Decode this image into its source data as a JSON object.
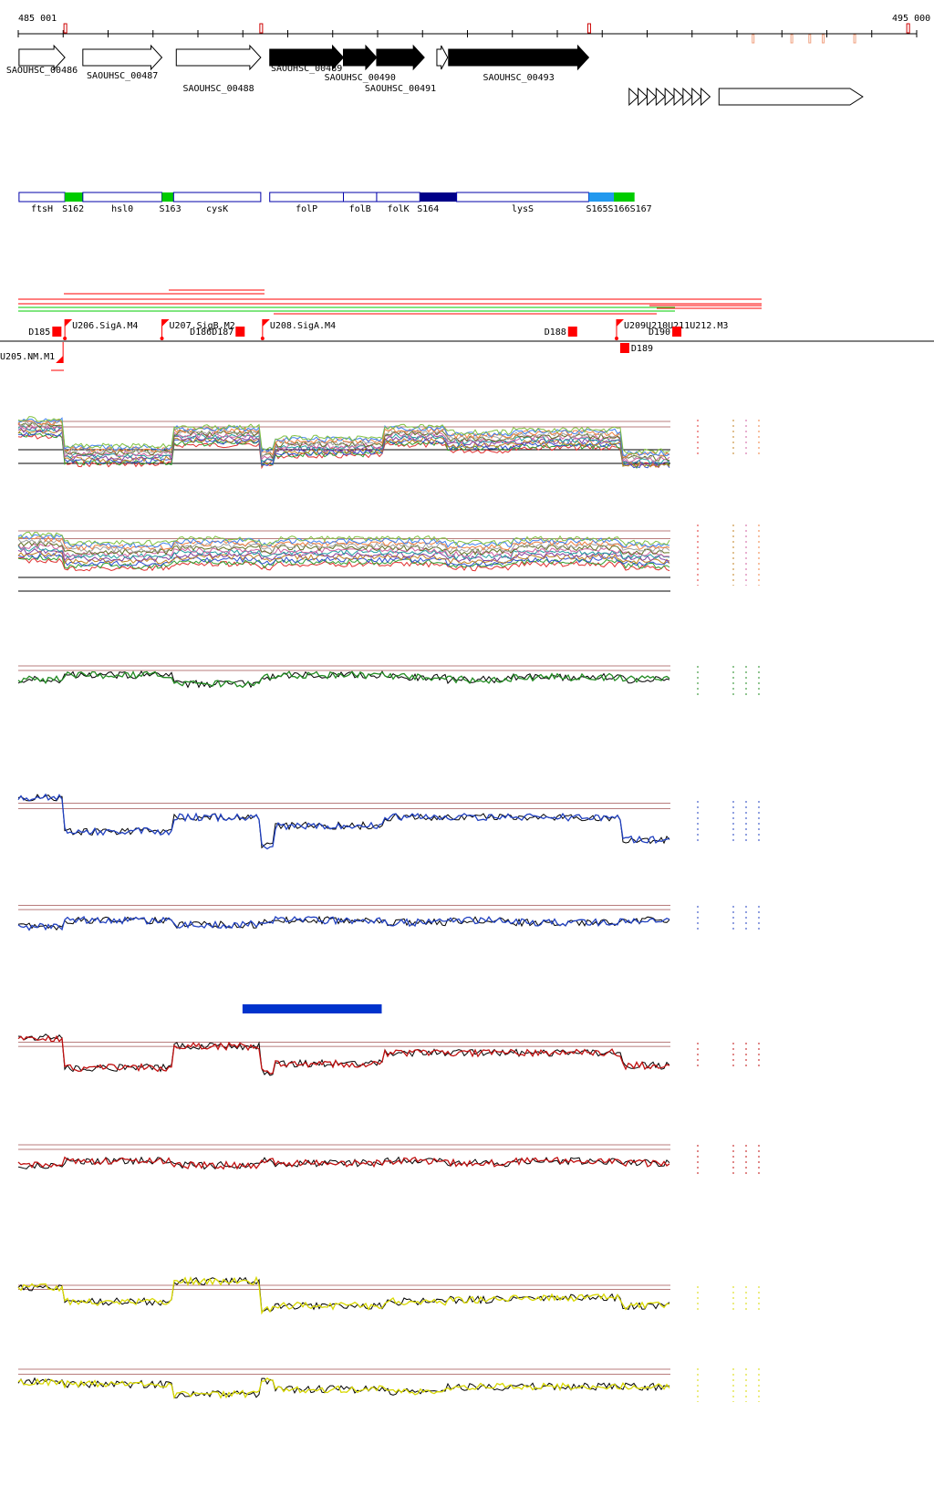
{
  "ruler": {
    "start_label": "485 001",
    "end_label": "495 000"
  },
  "colors": {
    "axis": "#000000",
    "tick_red": "#cc0000",
    "tick_salmon": "#f0a080",
    "gene_outline": "#000000",
    "region_outline": "#0000aa",
    "srna_green": "#00cc00",
    "srna_lightblue": "#2299ee",
    "srna_navy": "#000088",
    "promoter_red": "#ff0000",
    "guide_darkred": "#a05050",
    "green_track": "#228b22",
    "blue_track": "#2040c0",
    "red_track": "#c01010",
    "yellow_track": "#d8d800"
  },
  "genes": [
    {
      "label": "SAOUHSC_00486",
      "strand": "+",
      "filled": false,
      "start": 485010,
      "end": 485520
    },
    {
      "label": "SAOUHSC_00487",
      "strand": "+",
      "filled": false,
      "start": 485720,
      "end": 486600
    },
    {
      "label": "SAOUHSC_00488",
      "strand": "+",
      "filled": false,
      "start": 486760,
      "end": 487700
    },
    {
      "label": "SAOUHSC_00489",
      "strand": "+",
      "filled": true,
      "start": 487800,
      "end": 488620
    },
    {
      "label": "SAOUHSC_00490",
      "strand": "+",
      "filled": true,
      "start": 488620,
      "end": 488990
    },
    {
      "label": "SAOUHSC_00491",
      "strand": "+",
      "filled": true,
      "start": 488990,
      "end": 489520
    },
    {
      "label": "",
      "strand": "+",
      "filled": false,
      "start": 489660,
      "end": 489780
    },
    {
      "label": "SAOUHSC_00493",
      "strand": "+",
      "filled": true,
      "start": 489790,
      "end": 491350
    }
  ],
  "repeat_genes": [
    {
      "label": "",
      "strand": "+",
      "start": 491800,
      "end": 492700,
      "count": 9
    },
    {
      "label": "",
      "strand": "+",
      "start": 492800,
      "end": 494400,
      "count": 1
    }
  ],
  "regions": [
    {
      "label": "ftsH",
      "kind": "cds",
      "start": 485010,
      "end": 485520
    },
    {
      "label": "S162",
      "kind": "srna-green",
      "start": 485520,
      "end": 485720
    },
    {
      "label": "hsl0",
      "kind": "cds",
      "start": 485720,
      "end": 486600
    },
    {
      "label": "S163",
      "kind": "srna-green",
      "start": 486600,
      "end": 486730
    },
    {
      "label": "cysK",
      "kind": "cds",
      "start": 486730,
      "end": 487700
    },
    {
      "label": "folP",
      "kind": "cds",
      "start": 487800,
      "end": 488620
    },
    {
      "label": "folB",
      "kind": "cds",
      "start": 488620,
      "end": 488990
    },
    {
      "label": "folK",
      "kind": "cds",
      "start": 488990,
      "end": 489470
    },
    {
      "label": "S164",
      "kind": "srna-navy",
      "start": 489470,
      "end": 489880
    },
    {
      "label": "lysS",
      "kind": "cds",
      "start": 489880,
      "end": 491350
    },
    {
      "label": "S165S166S167",
      "kind": "srna-blue",
      "start": 491350,
      "end": 491630
    },
    {
      "label": "",
      "kind": "srna-green",
      "start": 491630,
      "end": 491860
    }
  ],
  "promoters": [
    {
      "label": "U206.SigA.M4",
      "pos": 485520
    },
    {
      "label": "U207.SigB.M2",
      "pos": 486600
    },
    {
      "label": "U208.SigA.M4",
      "pos": 487720
    },
    {
      "label": "U209U210U211U212.M3",
      "pos": 491660
    }
  ],
  "minus_promoters": [
    {
      "label": "U205.NM.M1",
      "pos": 485500
    }
  ],
  "terminators": [
    {
      "label": "D185",
      "pos": 485380
    },
    {
      "label": "D186D187",
      "pos": 487420
    },
    {
      "label": "D188",
      "pos": 491120
    },
    {
      "label": "D189",
      "pos": 491700
    },
    {
      "label": "D190",
      "pos": 492280
    }
  ],
  "tracks": [
    {
      "name": "multi-condition-expression",
      "color": "multi",
      "level": [
        0.7,
        0.2,
        0.55,
        0.15,
        0.35,
        0.55,
        0.45,
        0.5,
        0.1,
        0.45
      ]
    },
    {
      "name": "multi-condition-expression-2",
      "color": "multi",
      "level": [
        0.6,
        0.5,
        0.55,
        0.5,
        0.55,
        0.55,
        0.5,
        0.55,
        0.5,
        0.6
      ]
    },
    {
      "name": "green-pair",
      "color": "green",
      "level": [
        0.5,
        0.6,
        0.4,
        0.55,
        0.6,
        0.55,
        0.5,
        0.55,
        0.5,
        0.5
      ]
    },
    {
      "name": "blue-pair",
      "color": "blue",
      "level": [
        0.9,
        0.3,
        0.55,
        0.05,
        0.4,
        0.55,
        0.55,
        0.55,
        0.15,
        0.3
      ]
    },
    {
      "name": "blue-pair-2",
      "color": "blue",
      "level": [
        0.3,
        0.45,
        0.35,
        0.4,
        0.45,
        0.4,
        0.45,
        0.4,
        0.45,
        0.35
      ]
    },
    {
      "name": "red-pair",
      "color": "red",
      "level": [
        0.9,
        0.2,
        0.7,
        0.1,
        0.3,
        0.55,
        0.55,
        0.55,
        0.25,
        0.6
      ]
    },
    {
      "name": "red-pair-2",
      "color": "red",
      "level": [
        0.35,
        0.45,
        0.35,
        0.45,
        0.4,
        0.45,
        0.4,
        0.45,
        0.4,
        0.4
      ]
    },
    {
      "name": "yellow-pair",
      "color": "yellow",
      "level": [
        0.75,
        0.4,
        0.9,
        0.2,
        0.3,
        0.4,
        0.45,
        0.5,
        0.3,
        0.35
      ]
    },
    {
      "name": "yellow-pair-2",
      "color": "yellow",
      "level": [
        0.55,
        0.5,
        0.3,
        0.55,
        0.4,
        0.35,
        0.45,
        0.45,
        0.45,
        0.55
      ]
    }
  ],
  "highlight_bar": {
    "start": 487700,
    "end": 489300
  }
}
